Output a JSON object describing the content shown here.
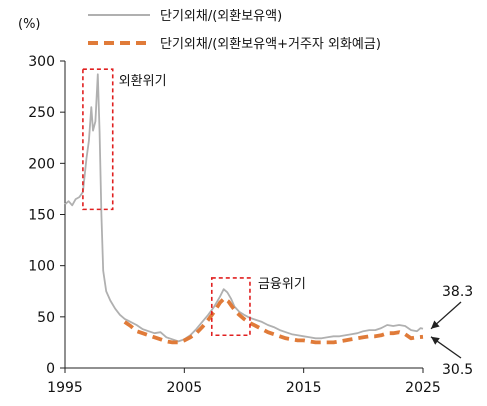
{
  "chart_data": {
    "type": "line",
    "yunit": "(%)",
    "xlim": [
      1995,
      2025
    ],
    "ylim": [
      0,
      300
    ],
    "yticks": [
      0,
      50,
      100,
      150,
      200,
      250,
      300
    ],
    "xticks": [
      1995,
      2005,
      2015,
      2025
    ],
    "grid": false,
    "legend_position": "top",
    "series": [
      {
        "name": "단기외채/(외환보유액)",
        "color": "#b0b0b0",
        "style": "solid",
        "points": [
          [
            1995.0,
            160
          ],
          [
            1995.3,
            163
          ],
          [
            1995.6,
            159
          ],
          [
            1995.9,
            165
          ],
          [
            1996.2,
            167
          ],
          [
            1996.5,
            172
          ],
          [
            1996.8,
            205
          ],
          [
            1997.0,
            222
          ],
          [
            1997.2,
            255
          ],
          [
            1997.35,
            232
          ],
          [
            1997.55,
            241
          ],
          [
            1997.75,
            287
          ],
          [
            1997.9,
            230
          ],
          [
            1998.05,
            150
          ],
          [
            1998.2,
            95
          ],
          [
            1998.45,
            75
          ],
          [
            1998.8,
            66
          ],
          [
            1999.2,
            58
          ],
          [
            1999.6,
            52
          ],
          [
            2000.0,
            48
          ],
          [
            2000.5,
            45
          ],
          [
            2001.0,
            42
          ],
          [
            2001.5,
            38
          ],
          [
            2002.0,
            36
          ],
          [
            2002.5,
            34
          ],
          [
            2003.0,
            35
          ],
          [
            2003.5,
            30
          ],
          [
            2004.0,
            28
          ],
          [
            2004.5,
            26
          ],
          [
            2005.0,
            28
          ],
          [
            2005.5,
            32
          ],
          [
            2006.0,
            38
          ],
          [
            2006.5,
            45
          ],
          [
            2007.0,
            52
          ],
          [
            2007.5,
            60
          ],
          [
            2008.0,
            70
          ],
          [
            2008.3,
            77
          ],
          [
            2008.6,
            74
          ],
          [
            2008.9,
            68
          ],
          [
            2009.2,
            60
          ],
          [
            2009.6,
            55
          ],
          [
            2010.0,
            52
          ],
          [
            2010.5,
            49
          ],
          [
            2011.0,
            47
          ],
          [
            2011.5,
            45
          ],
          [
            2012.0,
            42
          ],
          [
            2012.5,
            40
          ],
          [
            2013.0,
            37
          ],
          [
            2013.5,
            35
          ],
          [
            2014.0,
            33
          ],
          [
            2014.5,
            32
          ],
          [
            2015.0,
            31
          ],
          [
            2015.5,
            30
          ],
          [
            2016.0,
            29
          ],
          [
            2016.5,
            29
          ],
          [
            2017.0,
            30
          ],
          [
            2017.5,
            31
          ],
          [
            2018.0,
            31
          ],
          [
            2018.5,
            32
          ],
          [
            2019.0,
            33
          ],
          [
            2019.5,
            34
          ],
          [
            2020.0,
            36
          ],
          [
            2020.5,
            37
          ],
          [
            2021.0,
            37
          ],
          [
            2021.5,
            39
          ],
          [
            2022.0,
            42
          ],
          [
            2022.5,
            41
          ],
          [
            2023.0,
            42
          ],
          [
            2023.5,
            41
          ],
          [
            2024.0,
            37
          ],
          [
            2024.5,
            36
          ],
          [
            2024.8,
            39
          ],
          [
            2025.0,
            38.3
          ]
        ]
      },
      {
        "name": "단기외채/(외환보유액+거주자 외화예금)",
        "color": "#e07b39",
        "style": "dashed",
        "points": [
          [
            2000.0,
            45
          ],
          [
            2000.5,
            41
          ],
          [
            2001.0,
            36
          ],
          [
            2001.5,
            34
          ],
          [
            2002.0,
            32
          ],
          [
            2002.5,
            30
          ],
          [
            2003.0,
            28
          ],
          [
            2003.5,
            26
          ],
          [
            2004.0,
            25
          ],
          [
            2004.5,
            25
          ],
          [
            2005.0,
            27
          ],
          [
            2005.5,
            30
          ],
          [
            2006.0,
            34
          ],
          [
            2006.5,
            40
          ],
          [
            2007.0,
            47
          ],
          [
            2007.5,
            55
          ],
          [
            2008.0,
            64
          ],
          [
            2008.35,
            68
          ],
          [
            2008.7,
            65
          ],
          [
            2009.0,
            60
          ],
          [
            2009.4,
            54
          ],
          [
            2010.0,
            48
          ],
          [
            2010.5,
            44
          ],
          [
            2011.0,
            41
          ],
          [
            2011.5,
            38
          ],
          [
            2012.0,
            35
          ],
          [
            2012.5,
            33
          ],
          [
            2013.0,
            31
          ],
          [
            2013.5,
            29
          ],
          [
            2014.0,
            28
          ],
          [
            2014.5,
            27
          ],
          [
            2015.0,
            27
          ],
          [
            2015.5,
            26
          ],
          [
            2016.0,
            25
          ],
          [
            2016.5,
            25
          ],
          [
            2017.0,
            25
          ],
          [
            2017.5,
            25
          ],
          [
            2018.0,
            26
          ],
          [
            2018.5,
            27
          ],
          [
            2019.0,
            28
          ],
          [
            2019.5,
            29
          ],
          [
            2020.0,
            30
          ],
          [
            2020.5,
            31
          ],
          [
            2021.0,
            31
          ],
          [
            2021.5,
            32
          ],
          [
            2022.0,
            34
          ],
          [
            2022.5,
            34
          ],
          [
            2023.0,
            35
          ],
          [
            2023.5,
            33
          ],
          [
            2024.0,
            29
          ],
          [
            2024.5,
            30
          ],
          [
            2025.0,
            30.5
          ]
        ]
      }
    ],
    "annotations": [
      {
        "label": "외환위기",
        "box": {
          "x": [
            1996.5,
            1999.0
          ],
          "y": [
            155,
            292
          ]
        }
      },
      {
        "label": "금융위기",
        "box": {
          "x": [
            2007.3,
            2010.5
          ],
          "y": [
            32,
            88
          ]
        }
      }
    ],
    "end_labels": [
      {
        "text": "38.3",
        "value": 38.3
      },
      {
        "text": "30.5",
        "value": 30.5
      }
    ]
  }
}
